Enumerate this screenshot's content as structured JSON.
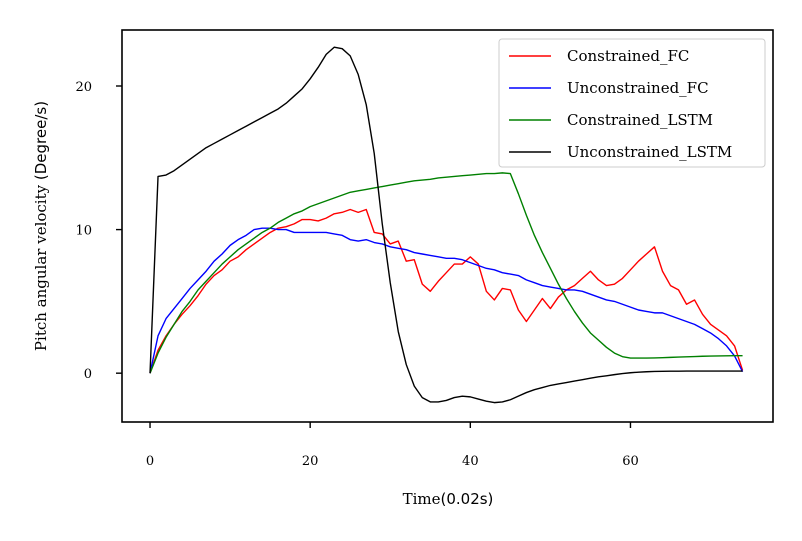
{
  "chart_data": {
    "type": "line",
    "title": "",
    "xlabel": {
      "prefix": "Time",
      "unit": "(0.02s)"
    },
    "ylabel": {
      "prefix": "Pitch angular velocity ",
      "unit": "(Degree/s)"
    },
    "xlim": [
      -3.5,
      77.8
    ],
    "ylim": [
      -3.4,
      23.9
    ],
    "xticks": [
      0,
      20,
      40,
      60
    ],
    "yticks": [
      0,
      10,
      20
    ],
    "grid": false,
    "legend_position": "top-right",
    "series": [
      {
        "name": "Constrained_FC",
        "color": "#ff0000",
        "x": [
          0,
          1,
          2,
          3,
          4,
          5,
          6,
          7,
          8,
          9,
          10,
          11,
          12,
          13,
          14,
          15,
          16,
          17,
          18,
          19,
          20,
          21,
          22,
          23,
          24,
          25,
          26,
          27,
          28,
          29,
          30,
          31,
          32,
          33,
          34,
          35,
          36,
          37,
          38,
          39,
          40,
          41,
          42,
          43,
          44,
          45,
          46,
          47,
          48,
          49,
          50,
          51,
          52,
          53,
          54,
          55,
          56,
          57,
          58,
          59,
          60,
          61,
          62,
          63,
          64,
          65,
          66,
          67,
          68,
          69,
          70,
          71,
          72,
          73,
          74
        ],
        "y": [
          0,
          1.6,
          2.6,
          3.4,
          4.1,
          4.7,
          5.4,
          6.2,
          6.8,
          7.2,
          7.8,
          8.1,
          8.6,
          9.0,
          9.4,
          9.8,
          10.1,
          10.2,
          10.4,
          10.7,
          10.7,
          10.6,
          10.8,
          11.1,
          11.2,
          11.4,
          11.2,
          11.4,
          9.8,
          9.7,
          9.0,
          9.2,
          7.8,
          7.9,
          6.2,
          5.7,
          6.4,
          7.0,
          7.6,
          7.6,
          8.1,
          7.6,
          5.7,
          5.1,
          5.9,
          5.8,
          4.4,
          3.6,
          4.4,
          5.2,
          4.5,
          5.3,
          5.8,
          6.1,
          6.6,
          7.1,
          6.5,
          6.1,
          6.2,
          6.6,
          7.2,
          7.8,
          8.3,
          8.8,
          7.1,
          6.1,
          5.8,
          4.8,
          5.1,
          4.1,
          3.4,
          3.0,
          2.6,
          1.9,
          0.2
        ]
      },
      {
        "name": "Unconstrained_FC",
        "color": "#0000ff",
        "x": [
          0,
          1,
          2,
          3,
          4,
          5,
          6,
          7,
          8,
          9,
          10,
          11,
          12,
          13,
          14,
          15,
          16,
          17,
          18,
          19,
          20,
          21,
          22,
          23,
          24,
          25,
          26,
          27,
          28,
          29,
          30,
          31,
          32,
          33,
          34,
          35,
          36,
          37,
          38,
          39,
          40,
          41,
          42,
          43,
          44,
          45,
          46,
          47,
          48,
          49,
          50,
          51,
          52,
          53,
          54,
          55,
          56,
          57,
          58,
          59,
          60,
          61,
          62,
          63,
          64,
          65,
          66,
          67,
          68,
          69,
          70,
          71,
          72,
          73,
          74
        ],
        "y": [
          0,
          2.6,
          3.8,
          4.5,
          5.2,
          5.9,
          6.5,
          7.1,
          7.8,
          8.3,
          8.9,
          9.3,
          9.6,
          10.0,
          10.1,
          10.1,
          10.0,
          10.0,
          9.8,
          9.8,
          9.8,
          9.8,
          9.8,
          9.7,
          9.6,
          9.3,
          9.2,
          9.3,
          9.1,
          9.0,
          8.8,
          8.7,
          8.6,
          8.4,
          8.3,
          8.2,
          8.1,
          8.0,
          8.0,
          7.9,
          7.7,
          7.5,
          7.3,
          7.2,
          7.0,
          6.9,
          6.8,
          6.5,
          6.3,
          6.1,
          6.0,
          5.9,
          5.8,
          5.8,
          5.7,
          5.5,
          5.3,
          5.1,
          5.0,
          4.8,
          4.6,
          4.4,
          4.3,
          4.2,
          4.2,
          4.0,
          3.8,
          3.6,
          3.4,
          3.1,
          2.8,
          2.4,
          1.9,
          1.2,
          0.1
        ]
      },
      {
        "name": "Constrained_LSTM",
        "color": "#008000",
        "x": [
          0,
          1,
          2,
          3,
          4,
          5,
          6,
          7,
          8,
          9,
          10,
          11,
          12,
          13,
          14,
          15,
          16,
          17,
          18,
          19,
          20,
          21,
          22,
          23,
          24,
          25,
          26,
          27,
          28,
          29,
          30,
          31,
          32,
          33,
          34,
          35,
          36,
          37,
          38,
          39,
          40,
          41,
          42,
          43,
          44,
          45,
          46,
          47,
          48,
          49,
          50,
          51,
          52,
          53,
          54,
          55,
          56,
          57,
          58,
          59,
          60,
          61,
          62,
          63,
          64,
          65,
          66,
          67,
          68,
          69,
          70,
          71,
          72,
          73,
          74
        ],
        "y": [
          0,
          1.4,
          2.5,
          3.4,
          4.3,
          5.0,
          5.8,
          6.4,
          7.0,
          7.6,
          8.1,
          8.6,
          9.0,
          9.4,
          9.8,
          10.1,
          10.5,
          10.8,
          11.1,
          11.3,
          11.6,
          11.8,
          12.0,
          12.2,
          12.4,
          12.6,
          12.7,
          12.8,
          12.9,
          13.0,
          13.1,
          13.2,
          13.3,
          13.4,
          13.45,
          13.5,
          13.6,
          13.65,
          13.7,
          13.75,
          13.8,
          13.85,
          13.9,
          13.9,
          13.95,
          13.9,
          12.5,
          11.0,
          9.6,
          8.4,
          7.3,
          6.2,
          5.2,
          4.3,
          3.5,
          2.8,
          2.3,
          1.8,
          1.4,
          1.15,
          1.05,
          1.05,
          1.05,
          1.06,
          1.08,
          1.1,
          1.12,
          1.14,
          1.16,
          1.18,
          1.19,
          1.2,
          1.21,
          1.22,
          1.22
        ]
      },
      {
        "name": "Unconstrained_LSTM",
        "color": "#000000",
        "x": [
          0,
          1,
          2,
          3,
          4,
          5,
          6,
          7,
          8,
          9,
          10,
          11,
          12,
          13,
          14,
          15,
          16,
          17,
          18,
          19,
          20,
          21,
          22,
          23,
          24,
          25,
          26,
          27,
          28,
          29,
          30,
          31,
          32,
          33,
          34,
          35,
          36,
          37,
          38,
          39,
          40,
          41,
          42,
          43,
          44,
          45,
          46,
          47,
          48,
          49,
          50,
          51,
          52,
          53,
          54,
          55,
          56,
          57,
          58,
          59,
          60,
          61,
          62,
          63,
          64,
          65,
          66,
          67,
          68,
          69,
          70,
          71,
          72,
          73,
          74
        ],
        "y": [
          0,
          13.7,
          13.8,
          14.1,
          14.5,
          14.9,
          15.3,
          15.7,
          16.0,
          16.3,
          16.6,
          16.9,
          17.2,
          17.5,
          17.8,
          18.1,
          18.4,
          18.8,
          19.3,
          19.8,
          20.5,
          21.3,
          22.2,
          22.7,
          22.6,
          22.1,
          20.8,
          18.7,
          15.3,
          10.4,
          6.3,
          2.9,
          0.6,
          -0.9,
          -1.7,
          -2.0,
          -2.0,
          -1.9,
          -1.7,
          -1.6,
          -1.65,
          -1.8,
          -1.95,
          -2.05,
          -2.0,
          -1.85,
          -1.6,
          -1.35,
          -1.15,
          -1.0,
          -0.85,
          -0.75,
          -0.65,
          -0.55,
          -0.45,
          -0.35,
          -0.25,
          -0.18,
          -0.1,
          -0.03,
          0.03,
          0.07,
          0.1,
          0.12,
          0.13,
          0.14,
          0.14,
          0.15,
          0.15,
          0.15,
          0.15,
          0.15,
          0.15,
          0.15,
          0.15
        ]
      }
    ]
  }
}
